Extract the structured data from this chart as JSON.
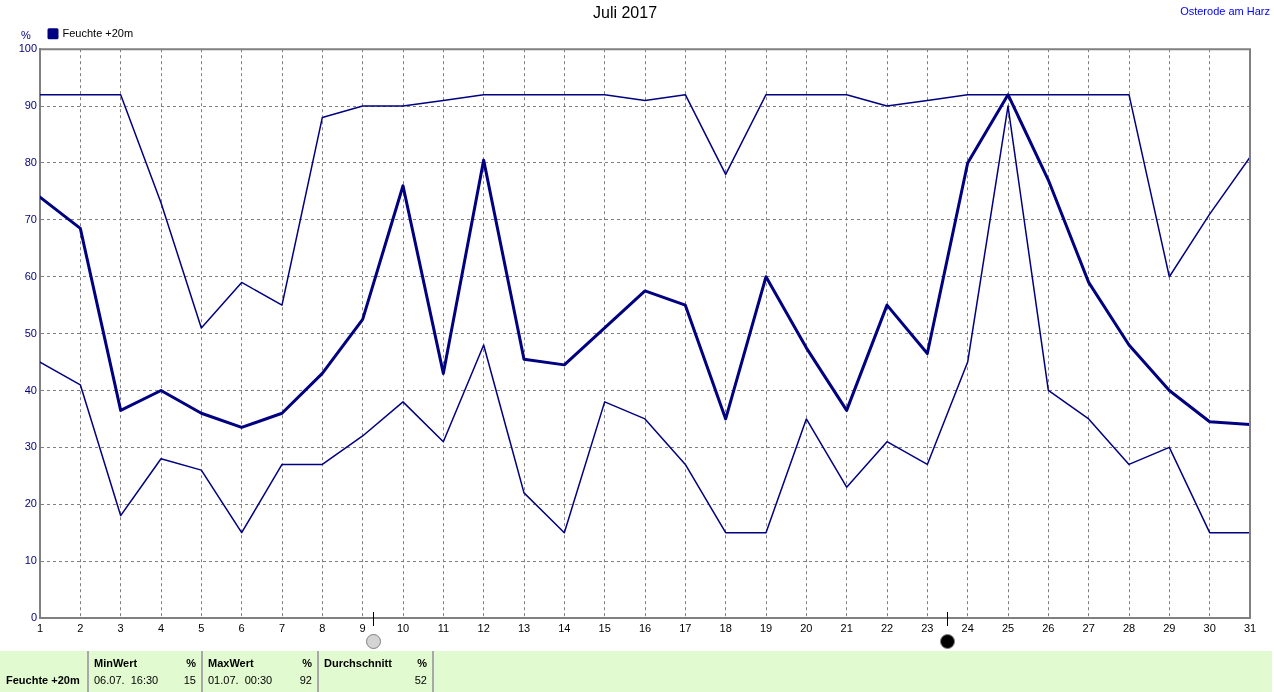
{
  "chart_data": {
    "type": "line",
    "title": "Juli 2017",
    "subtitle": "Osterode am Harz",
    "ylabel": "%",
    "x": [
      1,
      2,
      3,
      4,
      5,
      6,
      7,
      8,
      9,
      10,
      11,
      12,
      13,
      14,
      15,
      16,
      17,
      18,
      19,
      20,
      21,
      22,
      23,
      24,
      25,
      26,
      27,
      28,
      29,
      30,
      31
    ],
    "xlim": [
      1,
      31
    ],
    "xticks": [
      1,
      2,
      3,
      4,
      5,
      6,
      7,
      8,
      9,
      10,
      11,
      12,
      13,
      14,
      15,
      16,
      17,
      18,
      19,
      20,
      21,
      22,
      23,
      24,
      25,
      26,
      27,
      28,
      29,
      30,
      31
    ],
    "ylim": [
      0,
      100
    ],
    "yticks": [
      0,
      10,
      20,
      30,
      40,
      50,
      60,
      70,
      80,
      90,
      100
    ],
    "grid": true,
    "legend": "top left",
    "marker": "none",
    "series": [
      {
        "color": "#000080",
        "values": [
          92,
          92,
          92,
          73,
          51,
          59,
          55,
          88,
          90,
          90,
          91,
          92,
          92,
          92,
          92,
          91,
          92,
          78,
          92,
          92,
          92,
          90,
          91,
          92,
          92,
          92,
          92,
          92,
          60,
          71,
          81
        ]
      },
      {
        "name": "Feuchte +20m",
        "color": "#000080",
        "values": [
          74,
          68.5,
          36.5,
          40,
          36,
          33.5,
          36,
          43,
          52.5,
          76,
          43,
          80.5,
          45.5,
          44.5,
          51,
          57.5,
          55,
          35,
          60,
          47.5,
          36.5,
          55,
          46.5,
          80,
          92,
          77,
          59,
          48,
          40,
          34.5,
          34
        ]
      },
      {
        "color": "#000080",
        "values": [
          45,
          41,
          18,
          28,
          26,
          15,
          27,
          27,
          32,
          38,
          31,
          48,
          22,
          15,
          38,
          35,
          27,
          15,
          15,
          35,
          23,
          31,
          27,
          45,
          90,
          40,
          35,
          27,
          30,
          15,
          15
        ]
      }
    ],
    "annotations": [
      "Feuchte +20m",
      "MinWert",
      "%",
      "06.07.  16:30",
      "15",
      "MaxWert",
      "%",
      "01.07.  00:30",
      "92",
      "Durchschnitt",
      "%",
      "52"
    ]
  }
}
